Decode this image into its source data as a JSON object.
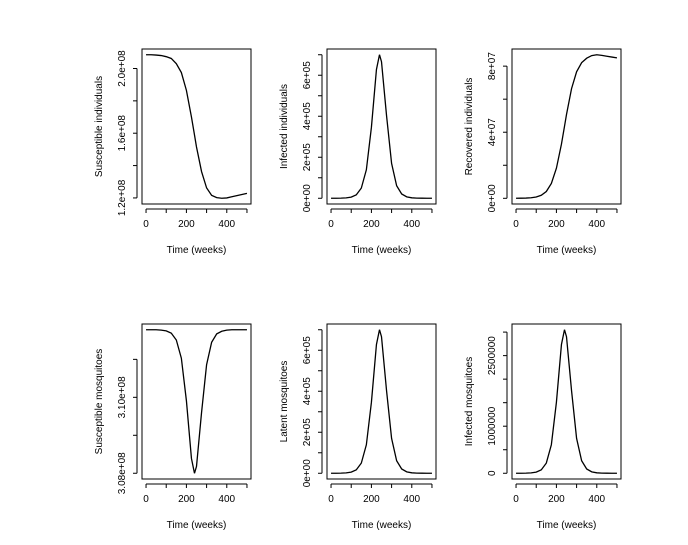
{
  "chart_data": [
    {
      "type": "line",
      "xlabel": "Time (weeks)",
      "ylabel": "Susceptible individuals",
      "xlim": [
        0,
        500
      ],
      "xticks": [
        0,
        100,
        200,
        300,
        400,
        500
      ],
      "xticklabels": [
        "0",
        "",
        "200",
        "",
        "400",
        ""
      ],
      "yticks": [
        120000000,
        140000000,
        160000000,
        180000000,
        200000000
      ],
      "yticklabels": [
        "1.2e+08",
        "",
        "1.6e+08",
        "",
        "2.0e+08"
      ],
      "x": [
        0,
        25,
        50,
        75,
        100,
        125,
        150,
        175,
        200,
        225,
        240,
        250,
        275,
        300,
        325,
        350,
        375,
        400,
        425,
        450,
        475,
        500
      ],
      "y": [
        208500000,
        208500000,
        208300000,
        208000000,
        207300000,
        206200000,
        203000000,
        197500000,
        186500000,
        170000000,
        159000000,
        151500000,
        136300000,
        126200000,
        121600000,
        120200000,
        119800000,
        120000000,
        120700000,
        121400000,
        122100000,
        122800000
      ]
    },
    {
      "type": "line",
      "xlabel": "Time (weeks)",
      "ylabel": "Infected individuals",
      "xlim": [
        0,
        500
      ],
      "xticks": [
        0,
        100,
        200,
        300,
        400,
        500
      ],
      "xticklabels": [
        "0",
        "",
        "200",
        "",
        "400",
        ""
      ],
      "yticks": [
        0,
        100000,
        200000,
        300000,
        400000,
        500000,
        600000,
        700000
      ],
      "yticklabels": [
        "0e+00",
        "",
        "2e+05",
        "",
        "4e+05",
        "",
        "6e+05",
        ""
      ],
      "x": [
        0,
        25,
        50,
        75,
        100,
        125,
        150,
        175,
        200,
        225,
        240,
        250,
        275,
        300,
        325,
        350,
        375,
        400,
        425,
        450,
        475,
        500
      ],
      "y": [
        65,
        196,
        605,
        1820,
        5560,
        16600,
        49500,
        139000,
        346000,
        628000,
        700000,
        666000,
        403000,
        170000,
        61000,
        20800,
        6900,
        2290,
        760,
        250,
        82,
        27
      ]
    },
    {
      "type": "line",
      "xlabel": "Time (weeks)",
      "ylabel": "Recovered individuals",
      "xlim": [
        0,
        500
      ],
      "xticks": [
        0,
        100,
        200,
        300,
        400,
        500
      ],
      "xticklabels": [
        "0",
        "",
        "200",
        "",
        "400",
        ""
      ],
      "yticks": [
        0,
        20000000,
        40000000,
        60000000,
        80000000
      ],
      "yticklabels": [
        "0e+00",
        "",
        "4e+07",
        "",
        "8e+07"
      ],
      "x": [
        0,
        25,
        50,
        75,
        100,
        125,
        150,
        175,
        200,
        225,
        240,
        250,
        275,
        300,
        325,
        350,
        375,
        400,
        425,
        450,
        475,
        500
      ],
      "y": [
        29000,
        67000,
        154000,
        354000,
        814000,
        1850000,
        4100000,
        9000000,
        18200000,
        32800000,
        43500000,
        50700000,
        66400000,
        76600000,
        82100000,
        84800000,
        86400000,
        86900000,
        86500000,
        86000000,
        85500000,
        85000000
      ]
    },
    {
      "type": "line",
      "xlabel": "Time (weeks)",
      "ylabel": "Susceptible mosquitoes",
      "xlim": [
        0,
        500
      ],
      "xticks": [
        0,
        100,
        200,
        300,
        400,
        500
      ],
      "xticklabels": [
        "0",
        "",
        "200",
        "",
        "400",
        ""
      ],
      "yticks": [
        308000000,
        309000000,
        310000000,
        311000000
      ],
      "yticklabels": [
        "3.08e+08",
        "",
        "3.10e+08",
        ""
      ],
      "x": [
        0,
        25,
        50,
        75,
        100,
        125,
        150,
        175,
        200,
        225,
        240,
        250,
        275,
        300,
        325,
        350,
        375,
        400,
        425,
        450,
        475,
        500
      ],
      "y": [
        311780000,
        311780000,
        311780000,
        311770000,
        311750000,
        311690000,
        311510000,
        311030000,
        309910000,
        308390000,
        308000000,
        308180000,
        309600000,
        310860000,
        311450000,
        311670000,
        311740000,
        311770000,
        311780000,
        311780000,
        311780000,
        311780000
      ]
    },
    {
      "type": "line",
      "xlabel": "Time (weeks)",
      "ylabel": "Latent mosquitoes",
      "xlim": [
        0,
        500
      ],
      "xticks": [
        0,
        100,
        200,
        300,
        400,
        500
      ],
      "xticklabels": [
        "0",
        "",
        "200",
        "",
        "400",
        ""
      ],
      "yticks": [
        0,
        100000,
        200000,
        300000,
        400000,
        500000,
        600000,
        700000
      ],
      "yticklabels": [
        "0e+00",
        "",
        "2e+05",
        "",
        "4e+05",
        "",
        "6e+05",
        ""
      ],
      "x": [
        0,
        25,
        50,
        75,
        100,
        125,
        150,
        175,
        200,
        225,
        240,
        250,
        275,
        300,
        325,
        350,
        375,
        400,
        425,
        450,
        475,
        500
      ],
      "y": [
        65,
        196,
        605,
        1820,
        5560,
        16600,
        49500,
        139000,
        346000,
        628000,
        700000,
        666000,
        403000,
        170000,
        61000,
        20800,
        6900,
        2290,
        760,
        250,
        82,
        27
      ]
    },
    {
      "type": "line",
      "xlabel": "Time (weeks)",
      "ylabel": "Infected mosquitoes",
      "xlim": [
        0,
        500
      ],
      "xticks": [
        0,
        100,
        200,
        300,
        400,
        500
      ],
      "xticklabels": [
        "0",
        "",
        "200",
        "",
        "400",
        ""
      ],
      "yticks": [
        0,
        500000,
        1000000,
        1500000,
        2000000,
        2500000,
        3000000
      ],
      "yticklabels": [
        "0",
        "",
        "1000000",
        "",
        "",
        "2500000",
        ""
      ],
      "x": [
        0,
        25,
        50,
        75,
        100,
        125,
        150,
        175,
        200,
        225,
        240,
        250,
        275,
        300,
        325,
        350,
        375,
        400,
        425,
        450,
        475,
        500
      ],
      "y": [
        280,
        850,
        2640,
        7930,
        24200,
        72300,
        216000,
        606000,
        1508000,
        2736000,
        3050000,
        2902000,
        1756000,
        741000,
        266000,
        90600,
        30100,
        9980,
        3310,
        1090,
        357,
        118
      ]
    }
  ]
}
